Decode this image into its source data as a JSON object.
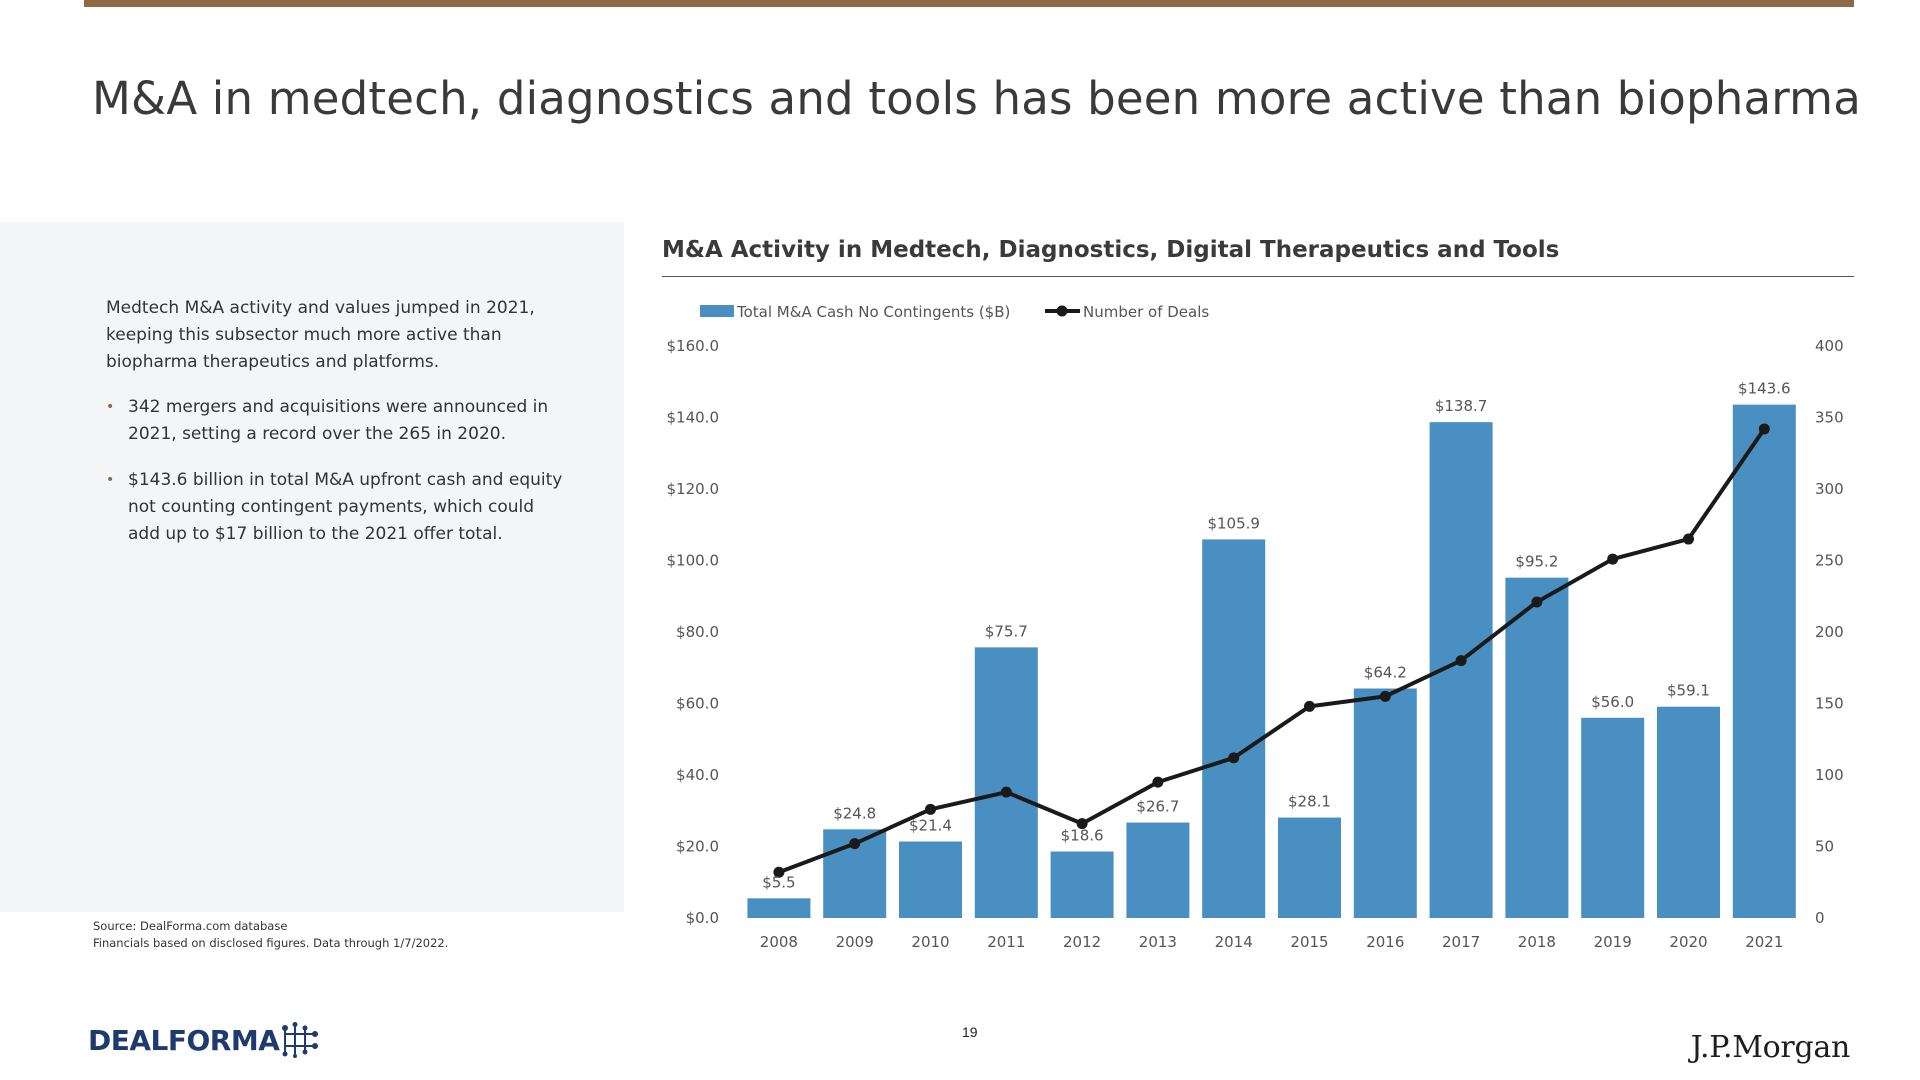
{
  "title": "M&A in medtech, diagnostics and tools has been more active than biopharma",
  "summary": "Medtech M&A activity and values jumped in 2021, keeping this subsector much more active than biopharma therapeutics and platforms.",
  "bullets": [
    "342 mergers and acquisitions were announced in 2021, setting a record over the 265 in 2020.",
    "$143.6 billion in total M&A upfront cash and equity not counting contingent payments, which could add up to $17 billion to the 2021 offer total."
  ],
  "source": [
    "Source: DealForma.com database",
    "Financials based on disclosed figures. Data through 1/7/2022."
  ],
  "page_number": "19",
  "logos": {
    "dealforma": "DEALFORMA",
    "jpmorgan": "J.P.Morgan"
  },
  "colors": {
    "accent_rule": "#8C6A45",
    "bar": "#4A8FC1",
    "line": "#1A1A1A",
    "axis_text": "#555555",
    "panel": "#F4F5F6"
  },
  "chart_data": {
    "type": "bar",
    "title": "M&A Activity in Medtech, Diagnostics, Digital Therapeutics and Tools",
    "categories": [
      "2008",
      "2009",
      "2010",
      "2011",
      "2012",
      "2013",
      "2014",
      "2015",
      "2016",
      "2017",
      "2018",
      "2019",
      "2020",
      "2021"
    ],
    "series": [
      {
        "name": "Total M&A Cash No Contingents ($B)",
        "type": "bar",
        "axis": "left",
        "values": [
          5.5,
          24.8,
          21.4,
          75.7,
          18.6,
          26.7,
          105.9,
          28.1,
          64.2,
          138.7,
          95.2,
          56.0,
          59.1,
          143.6
        ],
        "labels": [
          "$5.5",
          "$24.8",
          "$21.4",
          "$75.7",
          "$18.6",
          "$26.7",
          "$105.9",
          "$28.1",
          "$64.2",
          "$138.7",
          "$95.2",
          "$56.0",
          "$59.1",
          "$143.6"
        ]
      },
      {
        "name": "Number of Deals",
        "type": "line",
        "axis": "right",
        "values": [
          32,
          52,
          76,
          88,
          66,
          95,
          112,
          148,
          155,
          180,
          221,
          251,
          265,
          342
        ]
      }
    ],
    "ylim": [
      0,
      160
    ],
    "y2lim": [
      0,
      400
    ],
    "yticks": [
      "$0.0",
      "$20.0",
      "$40.0",
      "$60.0",
      "$80.0",
      "$100.0",
      "$120.0",
      "$140.0",
      "$160.0"
    ],
    "y2ticks": [
      "0",
      "50",
      "100",
      "150",
      "200",
      "250",
      "300",
      "350",
      "400"
    ],
    "legend": "top-left",
    "grid": false
  }
}
